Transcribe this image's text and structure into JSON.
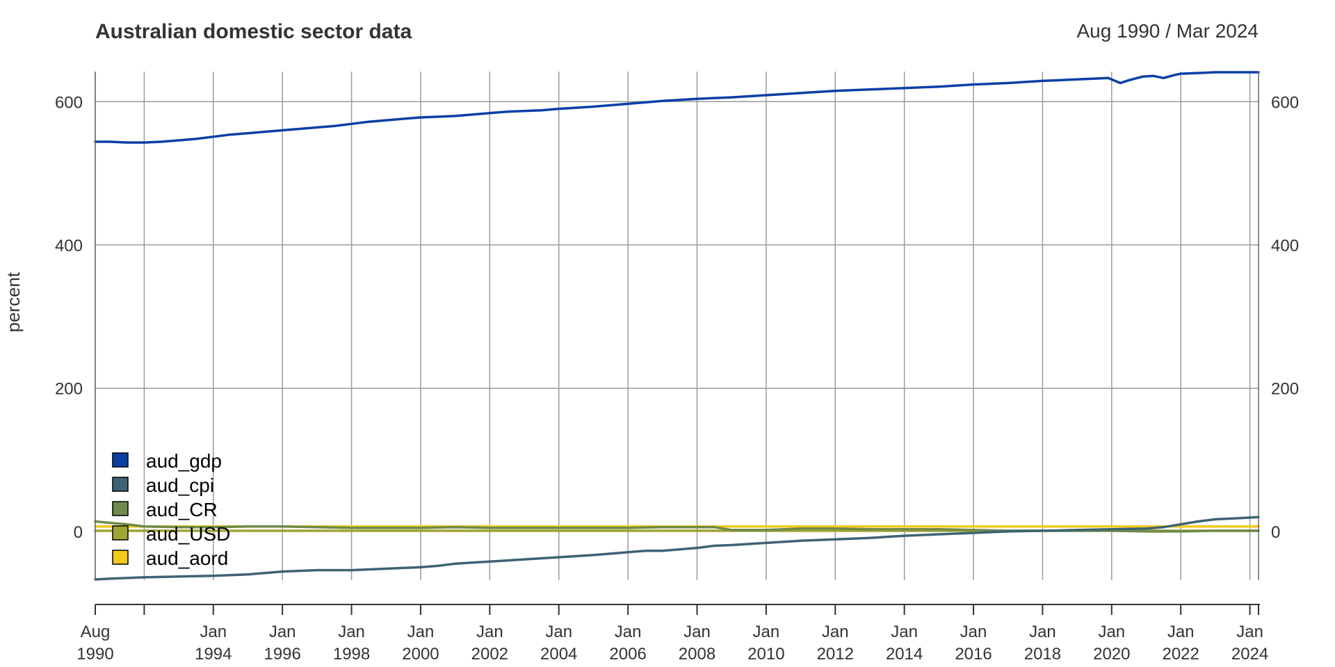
{
  "chart_data": {
    "type": "line",
    "title": "Australian domestic sector data",
    "date_range": "Aug 1990 / Mar 2024",
    "ylabel": "percent",
    "xlim": [
      1990.583,
      2024.25
    ],
    "ylim": [
      -68,
      642
    ],
    "y_ticks": [
      0,
      200,
      400,
      600
    ],
    "x_ticks": [
      {
        "x": 1990.583,
        "line1": "Aug",
        "line2": "1990"
      },
      {
        "x": 1992.0,
        "line1": "",
        "line2": ""
      },
      {
        "x": 1994.0,
        "line1": "Jan",
        "line2": "1994"
      },
      {
        "x": 1996.0,
        "line1": "Jan",
        "line2": "1996"
      },
      {
        "x": 1998.0,
        "line1": "Jan",
        "line2": "1998"
      },
      {
        "x": 2000.0,
        "line1": "Jan",
        "line2": "2000"
      },
      {
        "x": 2002.0,
        "line1": "Jan",
        "line2": "2002"
      },
      {
        "x": 2004.0,
        "line1": "Jan",
        "line2": "2004"
      },
      {
        "x": 2006.0,
        "line1": "Jan",
        "line2": "2006"
      },
      {
        "x": 2008.0,
        "line1": "Jan",
        "line2": "2008"
      },
      {
        "x": 2010.0,
        "line1": "Jan",
        "line2": "2010"
      },
      {
        "x": 2012.0,
        "line1": "Jan",
        "line2": "2012"
      },
      {
        "x": 2014.0,
        "line1": "Jan",
        "line2": "2014"
      },
      {
        "x": 2016.0,
        "line1": "Jan",
        "line2": "2016"
      },
      {
        "x": 2018.0,
        "line1": "Jan",
        "line2": "2018"
      },
      {
        "x": 2020.0,
        "line1": "Jan",
        "line2": "2020"
      },
      {
        "x": 2022.0,
        "line1": "Jan",
        "line2": "2022"
      },
      {
        "x": 2024.0,
        "line1": "Jan",
        "line2": "2024"
      }
    ],
    "grid": true,
    "legend_position": "bottom-left",
    "series": [
      {
        "name": "aud_gdp",
        "color": "#0a3fa6",
        "x": [
          1990.583,
          1991.0,
          1991.5,
          1992.0,
          1992.5,
          1993.0,
          1993.5,
          1994.0,
          1994.5,
          1995.0,
          1995.5,
          1996.0,
          1996.5,
          1997.0,
          1997.5,
          1998.0,
          1998.5,
          1999.0,
          1999.5,
          2000.0,
          2000.5,
          2001.0,
          2001.5,
          2002.0,
          2002.5,
          2003.0,
          2003.5,
          2004.0,
          2005.0,
          2006.0,
          2007.0,
          2008.0,
          2009.0,
          2010.0,
          2011.0,
          2012.0,
          2013.0,
          2014.0,
          2015.0,
          2016.0,
          2017.0,
          2018.0,
          2019.0,
          2019.9,
          2020.25,
          2020.5,
          2020.9,
          2021.2,
          2021.5,
          2021.8,
          2022.0,
          2022.5,
          2023.0,
          2023.5,
          2024.25
        ],
        "y": [
          544,
          544,
          543,
          543,
          544,
          546,
          548,
          551,
          554,
          556,
          558,
          560,
          562,
          564,
          566,
          569,
          572,
          574,
          576,
          578,
          579,
          580,
          582,
          584,
          586,
          587,
          588,
          590,
          593,
          597,
          601,
          604,
          606,
          609,
          612,
          615,
          617,
          619,
          621,
          624,
          626,
          629,
          631,
          633,
          626,
          630,
          635,
          636,
          633,
          637,
          639,
          640,
          641,
          641,
          641
        ]
      },
      {
        "name": "aud_cpi",
        "color": "#3d6373",
        "x": [
          1990.583,
          1991.0,
          1992.0,
          1993.0,
          1994.0,
          1995.0,
          1996.0,
          1997.0,
          1998.0,
          1999.0,
          2000.0,
          2000.5,
          2001.0,
          2002.0,
          2003.0,
          2004.0,
          2005.0,
          2006.0,
          2006.5,
          2007.0,
          2008.0,
          2008.5,
          2009.0,
          2010.0,
          2011.0,
          2012.0,
          2013.0,
          2014.0,
          2015.0,
          2016.0,
          2017.0,
          2018.0,
          2019.0,
          2020.0,
          2021.0,
          2021.5,
          2022.0,
          2022.5,
          2023.0,
          2023.5,
          2024.25
        ],
        "y": [
          -67,
          -66,
          -64,
          -63,
          -62,
          -60,
          -56,
          -54,
          -54,
          -52,
          -50,
          -48,
          -45,
          -42,
          -39,
          -36,
          -33,
          -29,
          -27,
          -27,
          -23,
          -20,
          -19,
          -16,
          -13,
          -11,
          -9,
          -6,
          -4,
          -2,
          0,
          1,
          2,
          3,
          4,
          6,
          10,
          14,
          17,
          18,
          20
        ]
      },
      {
        "name": "aud_CR",
        "color": "#6f8a4a",
        "x": [
          1990.583,
          1991.0,
          1991.5,
          1992.0,
          1993.0,
          1994.0,
          1995.0,
          1996.0,
          1997.0,
          1998.0,
          1999.0,
          2000.0,
          2001.0,
          2002.0,
          2003.0,
          2004.0,
          2005.0,
          2006.0,
          2007.0,
          2008.0,
          2008.5,
          2009.0,
          2010.0,
          2011.0,
          2012.0,
          2013.0,
          2014.0,
          2015.0,
          2016.0,
          2017.0,
          2018.0,
          2019.0,
          2020.0,
          2021.0,
          2022.0,
          2023.0,
          2024.25
        ],
        "y": [
          14,
          12,
          10,
          7,
          6,
          6,
          7,
          7,
          6,
          5,
          5,
          5,
          6,
          5,
          5,
          5,
          5,
          5,
          6,
          6,
          6,
          2,
          2,
          4,
          4,
          3,
          3,
          3,
          2,
          1,
          1,
          1,
          1,
          0,
          0,
          1,
          1
        ]
      },
      {
        "name": "aud_USD",
        "color": "#a0a632",
        "x": [
          1990.583,
          1992.0,
          1994.0,
          1996.0,
          1998.0,
          2000.0,
          2002.0,
          2004.0,
          2006.0,
          2008.0,
          2010.0,
          2012.0,
          2014.0,
          2016.0,
          2018.0,
          2020.0,
          2022.0,
          2024.25
        ],
        "y": [
          1,
          1,
          1,
          1,
          1,
          1,
          1,
          1,
          1,
          1,
          1,
          1,
          1,
          1,
          1,
          1,
          1,
          1
        ]
      },
      {
        "name": "aud_aord",
        "color": "#f2c91d",
        "x": [
          1990.583,
          1992.0,
          1994.0,
          1996.0,
          1998.0,
          2000.0,
          2002.0,
          2004.0,
          2006.0,
          2008.0,
          2010.0,
          2012.0,
          2014.0,
          2016.0,
          2018.0,
          2020.0,
          2022.0,
          2024.25
        ],
        "y": [
          7,
          7,
          7,
          7,
          7,
          7,
          7,
          7,
          7,
          7,
          7,
          7,
          7,
          7,
          7,
          7,
          7,
          7
        ]
      }
    ]
  }
}
